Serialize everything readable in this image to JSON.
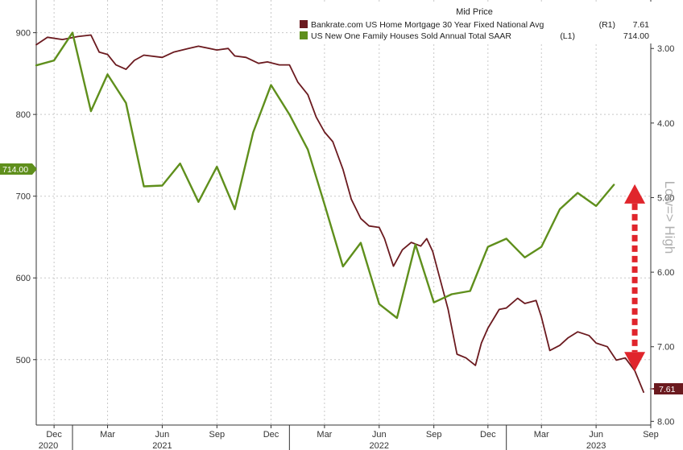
{
  "chart_data": {
    "type": "line",
    "title": "Mid Price",
    "x_ticks": [
      {
        "label": "Dec",
        "year": "2020",
        "date": "2020-12-01"
      },
      {
        "label": "Mar",
        "year": "",
        "date": "2021-03-01"
      },
      {
        "label": "Jun",
        "year": "2021",
        "date": "2021-06-01"
      },
      {
        "label": "Sep",
        "year": "",
        "date": "2021-09-01"
      },
      {
        "label": "Dec",
        "year": "",
        "date": "2021-12-01"
      },
      {
        "label": "Mar",
        "year": "",
        "date": "2022-03-01"
      },
      {
        "label": "Jun",
        "year": "2022",
        "date": "2022-06-01"
      },
      {
        "label": "Sep",
        "year": "",
        "date": "2022-09-01"
      },
      {
        "label": "Dec",
        "year": "",
        "date": "2022-12-01"
      },
      {
        "label": "Mar",
        "year": "",
        "date": "2023-03-01"
      },
      {
        "label": "Jun",
        "year": "2023",
        "date": "2023-06-01"
      },
      {
        "label": "Sep",
        "year": "",
        "date": "2023-09-01"
      }
    ],
    "xlim": [
      "2020-11-01",
      "2023-09-01"
    ],
    "left_axis": {
      "ticks": [
        "500",
        "600",
        "700",
        "800",
        "900"
      ],
      "ylim": [
        420,
        940
      ]
    },
    "right_axis": {
      "ticks": [
        "3.00",
        "4.00",
        "5.00",
        "6.00",
        "7.00",
        "8.00"
      ],
      "ylim": [
        2.35,
        8.05
      ],
      "inverted": true,
      "label": "Low=> High"
    },
    "grid": true,
    "legend_position": "top-right",
    "series": [
      {
        "name": "Bankrate.com US Home Mortgage 30 Year Fixed National Avg",
        "axis_tag": "(R1)",
        "last_value": "7.61",
        "color": "#6b1a1f",
        "axis": "right",
        "points": [
          [
            "2020-11-01",
            2.95
          ],
          [
            "2020-11-20",
            2.85
          ],
          [
            "2020-12-15",
            2.88
          ],
          [
            "2021-01-10",
            2.84
          ],
          [
            "2021-02-01",
            2.82
          ],
          [
            "2021-02-15",
            3.05
          ],
          [
            "2021-03-01",
            3.08
          ],
          [
            "2021-03-15",
            3.22
          ],
          [
            "2021-04-01",
            3.28
          ],
          [
            "2021-04-15",
            3.16
          ],
          [
            "2021-05-01",
            3.09
          ],
          [
            "2021-06-01",
            3.12
          ],
          [
            "2021-06-20",
            3.05
          ],
          [
            "2021-07-15",
            3.0
          ],
          [
            "2021-08-01",
            2.97
          ],
          [
            "2021-09-01",
            3.02
          ],
          [
            "2021-09-20",
            3.0
          ],
          [
            "2021-10-01",
            3.1
          ],
          [
            "2021-10-20",
            3.12
          ],
          [
            "2021-11-10",
            3.2
          ],
          [
            "2021-11-25",
            3.18
          ],
          [
            "2021-12-15",
            3.22
          ],
          [
            "2022-01-01",
            3.22
          ],
          [
            "2022-01-15",
            3.45
          ],
          [
            "2022-02-01",
            3.62
          ],
          [
            "2022-02-15",
            3.92
          ],
          [
            "2022-03-01",
            4.12
          ],
          [
            "2022-03-15",
            4.25
          ],
          [
            "2022-04-01",
            4.62
          ],
          [
            "2022-04-15",
            5.02
          ],
          [
            "2022-05-01",
            5.28
          ],
          [
            "2022-05-15",
            5.38
          ],
          [
            "2022-06-01",
            5.4
          ],
          [
            "2022-06-10",
            5.55
          ],
          [
            "2022-06-25",
            5.92
          ],
          [
            "2022-07-10",
            5.7
          ],
          [
            "2022-07-25",
            5.6
          ],
          [
            "2022-08-10",
            5.65
          ],
          [
            "2022-08-20",
            5.55
          ],
          [
            "2022-08-30",
            5.72
          ],
          [
            "2022-09-10",
            6.05
          ],
          [
            "2022-09-25",
            6.5
          ],
          [
            "2022-10-10",
            7.1
          ],
          [
            "2022-10-25",
            7.15
          ],
          [
            "2022-11-10",
            7.25
          ],
          [
            "2022-11-20",
            6.95
          ],
          [
            "2022-12-01",
            6.75
          ],
          [
            "2022-12-20",
            6.5
          ],
          [
            "2023-01-01",
            6.48
          ],
          [
            "2023-01-20",
            6.35
          ],
          [
            "2023-02-01",
            6.42
          ],
          [
            "2023-02-20",
            6.38
          ],
          [
            "2023-03-01",
            6.6
          ],
          [
            "2023-03-15",
            7.05
          ],
          [
            "2023-04-01",
            6.98
          ],
          [
            "2023-04-15",
            6.88
          ],
          [
            "2023-05-01",
            6.8
          ],
          [
            "2023-05-20",
            6.85
          ],
          [
            "2023-06-01",
            6.95
          ],
          [
            "2023-06-20",
            7.0
          ],
          [
            "2023-07-05",
            7.18
          ],
          [
            "2023-07-20",
            7.15
          ],
          [
            "2023-08-05",
            7.32
          ],
          [
            "2023-08-20",
            7.61
          ]
        ]
      },
      {
        "name": "US New One Family Houses Sold Annual Total SAAR",
        "axis_tag": "(L1)",
        "last_value": "714.00",
        "color": "#5f8f1c",
        "axis": "left",
        "points": [
          [
            "2020-11-01",
            860
          ],
          [
            "2020-12-01",
            866
          ],
          [
            "2021-01-01",
            900
          ],
          [
            "2021-02-01",
            804
          ],
          [
            "2021-03-01",
            849
          ],
          [
            "2021-04-01",
            814
          ],
          [
            "2021-05-01",
            712
          ],
          [
            "2021-06-01",
            713
          ],
          [
            "2021-07-01",
            740
          ],
          [
            "2021-08-01",
            693
          ],
          [
            "2021-09-01",
            736
          ],
          [
            "2021-10-01",
            684
          ],
          [
            "2021-11-01",
            778
          ],
          [
            "2021-12-01",
            836
          ],
          [
            "2022-01-01",
            800
          ],
          [
            "2022-02-01",
            757
          ],
          [
            "2022-03-01",
            690
          ],
          [
            "2022-04-01",
            614
          ],
          [
            "2022-05-01",
            643
          ],
          [
            "2022-06-01",
            568
          ],
          [
            "2022-07-01",
            551
          ],
          [
            "2022-08-01",
            641
          ],
          [
            "2022-09-01",
            570
          ],
          [
            "2022-10-01",
            580
          ],
          [
            "2022-11-01",
            584
          ],
          [
            "2022-12-01",
            638
          ],
          [
            "2023-01-01",
            648
          ],
          [
            "2023-02-01",
            625
          ],
          [
            "2023-03-01",
            638
          ],
          [
            "2023-04-01",
            684
          ],
          [
            "2023-05-01",
            704
          ],
          [
            "2023-06-01",
            688
          ],
          [
            "2023-07-01",
            714
          ]
        ]
      }
    ],
    "annotations": [
      {
        "type": "double-arrow",
        "style": "dashed",
        "color": "#e0252c",
        "axis": "right",
        "x": "2023-08-05",
        "from": 4.95,
        "to": 7.2
      }
    ]
  },
  "colors": {
    "grid": "#c8c8c8",
    "axis_line": "#333333",
    "background": "#ffffff"
  }
}
